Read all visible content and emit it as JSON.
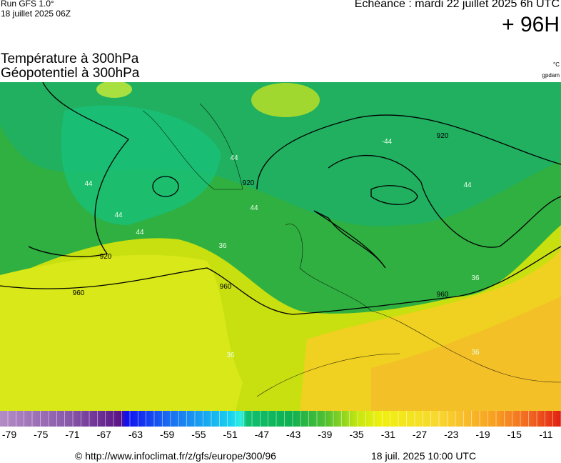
{
  "header": {
    "run": "Run GFS 1.0°",
    "run_date": "18 juillet 2025 06Z",
    "valid": "Echéance : mardi 22 juillet 2025 6h UTC",
    "lead": "+ 96H"
  },
  "titles": {
    "line1": "Température à 300hPa",
    "line2": "Géopotentiel à 300hPa",
    "unit_temp": "°C",
    "unit_geo": "gpdam"
  },
  "contours": {
    "geopotential_labels": [
      920,
      920,
      920,
      960,
      960,
      960
    ],
    "temperature_labels": [
      44,
      44,
      44,
      44,
      44,
      -44,
      44,
      36,
      36,
      36,
      36
    ]
  },
  "colorbar": {
    "ticks": [
      -79,
      -75,
      -71,
      -67,
      -63,
      -59,
      -55,
      -51,
      -47,
      -43,
      -39,
      -35,
      -31,
      -27,
      -23,
      -19,
      -15,
      -11
    ]
  },
  "footer": {
    "url": "© http://www.infoclimat.fr/z/gfs/europe/300/96",
    "timestamp": "18 juil. 2025 10:00 UTC"
  }
}
